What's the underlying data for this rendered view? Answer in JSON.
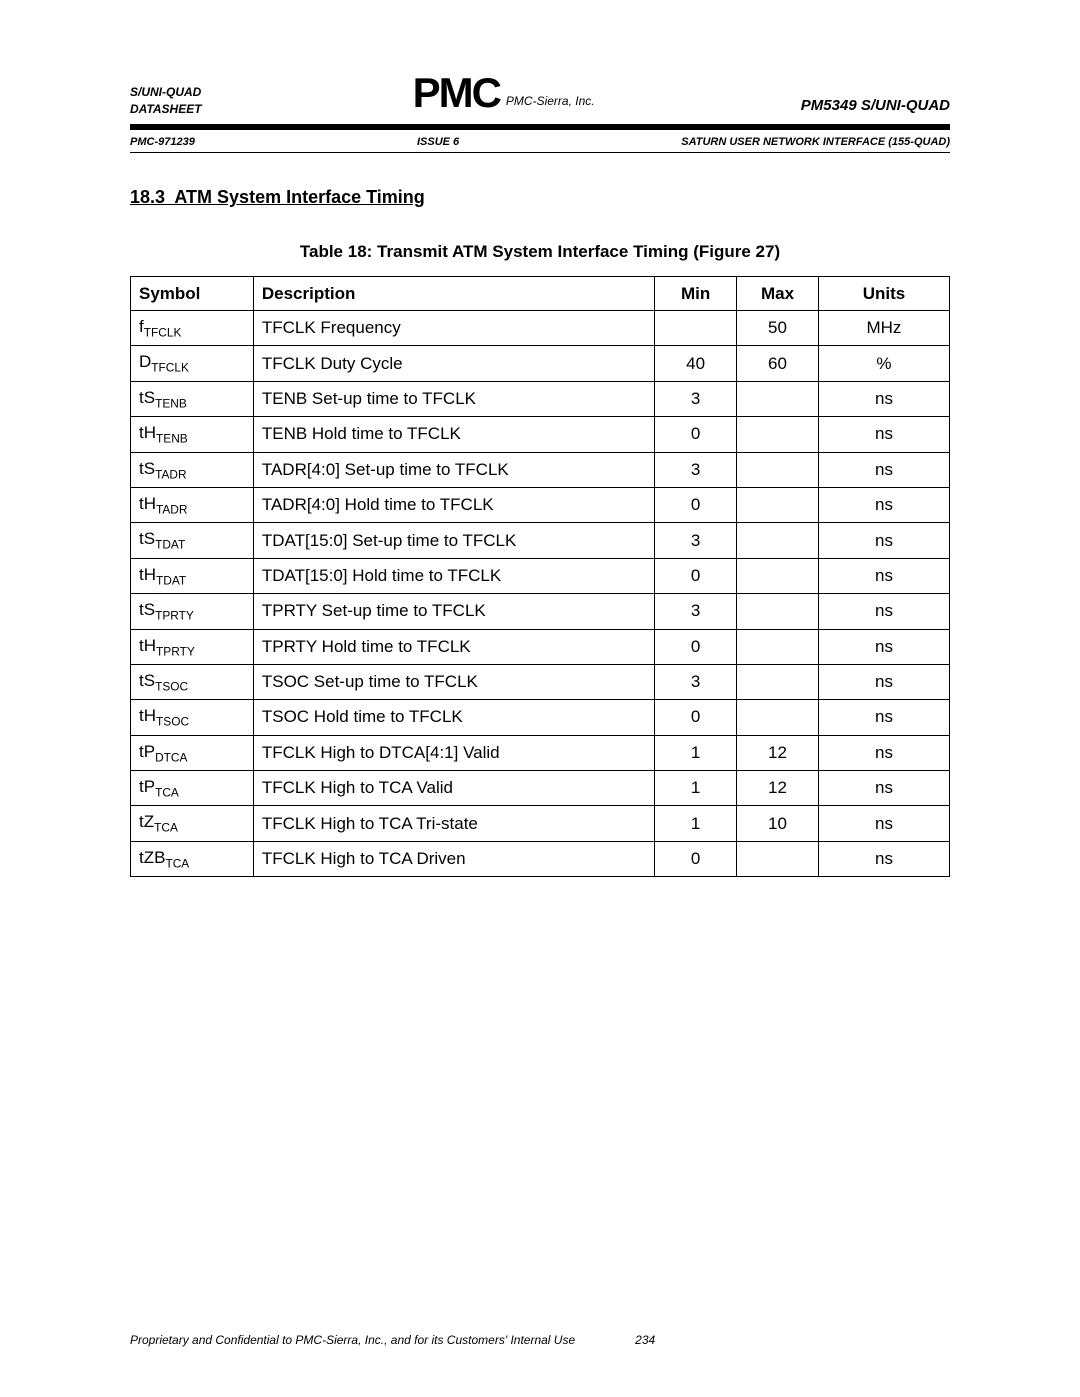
{
  "header": {
    "left_line1": "S/UNI-QUAD",
    "left_line2": "DATASHEET",
    "logo_main": "PMC",
    "logo_sub": "PMC-Sierra, Inc.",
    "right": "PM5349 S/UNI-QUAD",
    "meta_left": "PMC-971239",
    "meta_center": "ISSUE 6",
    "meta_right": "SATURN USER NETWORK INTERFACE (155-QUAD)"
  },
  "section": {
    "number": "18.3",
    "title": "ATM System Interface Timing"
  },
  "table": {
    "caption_prefix": "Table 18:",
    "caption": "Transmit ATM System Interface Timing (Figure 27)",
    "columns": [
      "Symbol",
      "Description",
      "Min",
      "Max",
      "Units"
    ],
    "rows": [
      {
        "sym_main": "f",
        "sym_sub": "TFCLK",
        "desc": "TFCLK Frequency",
        "min": "",
        "max": "50",
        "units": "MHz"
      },
      {
        "sym_main": "D",
        "sym_sub": "TFCLK",
        "desc": "TFCLK Duty Cycle",
        "min": "40",
        "max": "60",
        "units": "%"
      },
      {
        "sym_main": "tS",
        "sym_sub": "TENB",
        "desc": "TENB Set-up time to TFCLK",
        "min": "3",
        "max": "",
        "units": "ns"
      },
      {
        "sym_main": "tH",
        "sym_sub": "TENB",
        "desc": "TENB Hold time to TFCLK",
        "min": "0",
        "max": "",
        "units": "ns"
      },
      {
        "sym_main": "tS",
        "sym_sub": "TADR",
        "desc": "TADR[4:0] Set-up time to TFCLK",
        "min": "3",
        "max": "",
        "units": "ns"
      },
      {
        "sym_main": "tH",
        "sym_sub": "TADR",
        "desc": "TADR[4:0] Hold time to TFCLK",
        "min": "0",
        "max": "",
        "units": "ns"
      },
      {
        "sym_main": "tS",
        "sym_sub": "TDAT",
        "desc": "TDAT[15:0] Set-up time to TFCLK",
        "min": "3",
        "max": "",
        "units": "ns"
      },
      {
        "sym_main": "tH",
        "sym_sub": "TDAT",
        "desc": "TDAT[15:0] Hold time to TFCLK",
        "min": "0",
        "max": "",
        "units": "ns"
      },
      {
        "sym_main": "tS",
        "sym_sub": "TPRTY",
        "desc": "TPRTY Set-up time to TFCLK",
        "min": "3",
        "max": "",
        "units": "ns"
      },
      {
        "sym_main": "tH",
        "sym_sub": "TPRTY",
        "desc": "TPRTY Hold time to TFCLK",
        "min": "0",
        "max": "",
        "units": "ns"
      },
      {
        "sym_main": "tS",
        "sym_sub": "TSOC",
        "desc": "TSOC Set-up time to TFCLK",
        "min": "3",
        "max": "",
        "units": "ns"
      },
      {
        "sym_main": "tH",
        "sym_sub": "TSOC",
        "desc": "TSOC Hold time to TFCLK",
        "min": "0",
        "max": "",
        "units": "ns"
      },
      {
        "sym_main": "tP",
        "sym_sub": "DTCA",
        "desc": "TFCLK High to DTCA[4:1] Valid",
        "min": "1",
        "max": "12",
        "units": "ns"
      },
      {
        "sym_main": "tP",
        "sym_sub": "TCA",
        "desc": "TFCLK High to TCA Valid",
        "min": "1",
        "max": "12",
        "units": "ns"
      },
      {
        "sym_main": "tZ",
        "sym_sub": "TCA",
        "desc": "TFCLK High to TCA Tri-state",
        "min": "1",
        "max": "10",
        "units": "ns"
      },
      {
        "sym_main": "tZB",
        "sym_sub": "TCA",
        "desc": "TFCLK High to TCA Driven",
        "min": "0",
        "max": "",
        "units": "ns"
      }
    ]
  },
  "footer": {
    "text": "Proprietary and Confidential to PMC-Sierra, Inc., and for its Customers' Internal Use",
    "page": "234"
  }
}
